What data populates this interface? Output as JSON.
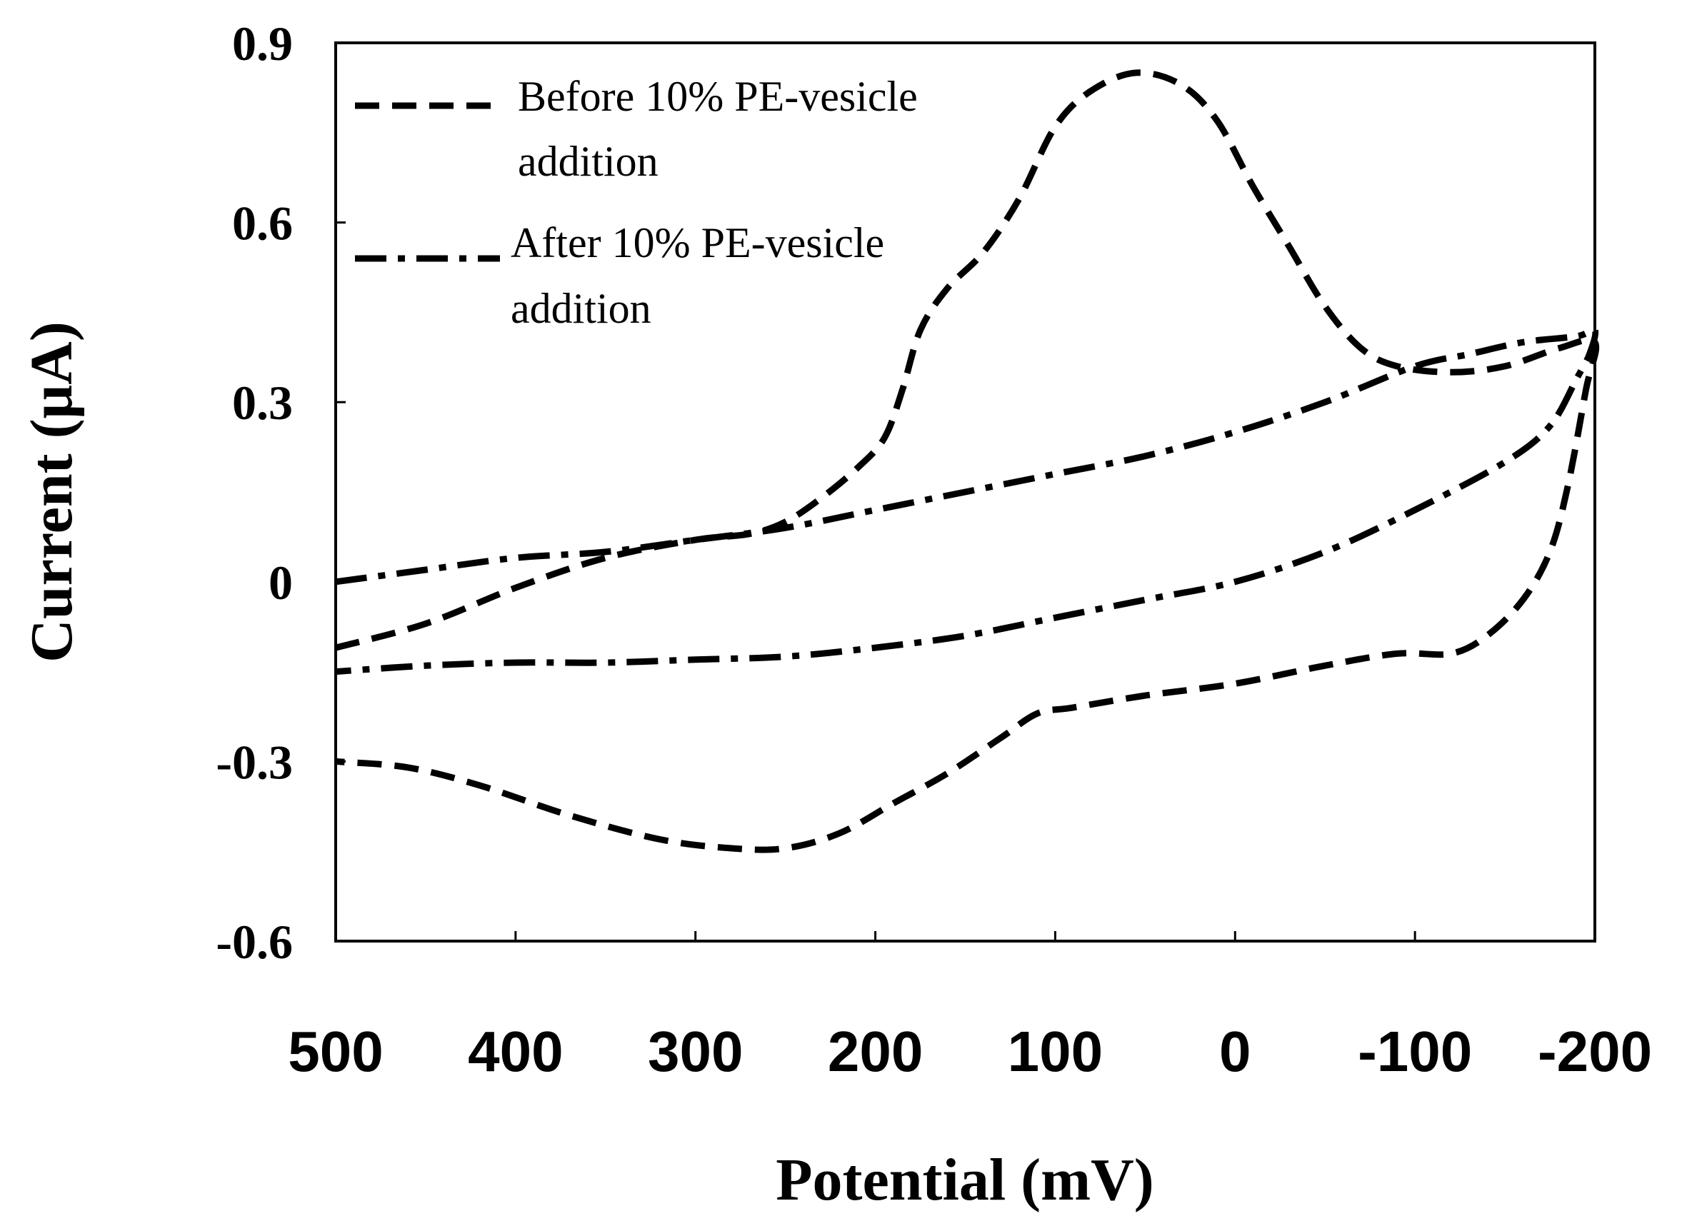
{
  "chart_data": {
    "type": "line",
    "title": "",
    "xlabel": "Potential (mV)",
    "ylabel": "Current (μA)",
    "xlim": [
      500,
      -200
    ],
    "ylim": [
      -0.6,
      0.9
    ],
    "x_ticks": [
      500,
      400,
      300,
      200,
      100,
      0,
      -100,
      -200
    ],
    "x_tick_labels": [
      "500",
      "400",
      "300",
      "200",
      "100",
      "0",
      "-100",
      "-200"
    ],
    "y_ticks": [
      0.9,
      0.6,
      0.3,
      0,
      -0.3,
      -0.6
    ],
    "y_tick_labels": [
      "0.9",
      "0.6",
      "0.3",
      "0",
      "-0.3",
      "-0.6"
    ],
    "grid": false,
    "legend_position": "top-left",
    "series": [
      {
        "name": "Before 10% PE-vesicle addition",
        "legend_lines": [
          "Before 10% PE-vesicle",
          "addition"
        ],
        "style": "dashed",
        "color": "#000000",
        "points": [
          [
            500,
            -0.11
          ],
          [
            450,
            -0.07
          ],
          [
            400,
            -0.01
          ],
          [
            350,
            0.04
          ],
          [
            300,
            0.07
          ],
          [
            270,
            0.08
          ],
          [
            250,
            0.1
          ],
          [
            230,
            0.14
          ],
          [
            210,
            0.19
          ],
          [
            195,
            0.24
          ],
          [
            185,
            0.32
          ],
          [
            175,
            0.42
          ],
          [
            160,
            0.49
          ],
          [
            140,
            0.55
          ],
          [
            120,
            0.64
          ],
          [
            100,
            0.76
          ],
          [
            80,
            0.82
          ],
          [
            55,
            0.85
          ],
          [
            30,
            0.83
          ],
          [
            10,
            0.77
          ],
          [
            -10,
            0.66
          ],
          [
            -30,
            0.56
          ],
          [
            -50,
            0.46
          ],
          [
            -70,
            0.39
          ],
          [
            -90,
            0.36
          ],
          [
            -120,
            0.35
          ],
          [
            -150,
            0.36
          ],
          [
            -180,
            0.39
          ],
          [
            -200,
            0.4
          ],
          [
            -195,
            0.32
          ],
          [
            -185,
            0.16
          ],
          [
            -175,
            0.05
          ],
          [
            -160,
            -0.03
          ],
          [
            -140,
            -0.09
          ],
          [
            -120,
            -0.12
          ],
          [
            -90,
            -0.12
          ],
          [
            -50,
            -0.14
          ],
          [
            0,
            -0.17
          ],
          [
            50,
            -0.19
          ],
          [
            90,
            -0.21
          ],
          [
            110,
            -0.22
          ],
          [
            130,
            -0.26
          ],
          [
            160,
            -0.32
          ],
          [
            190,
            -0.37
          ],
          [
            220,
            -0.42
          ],
          [
            250,
            -0.445
          ],
          [
            280,
            -0.445
          ],
          [
            320,
            -0.43
          ],
          [
            370,
            -0.39
          ],
          [
            420,
            -0.34
          ],
          [
            460,
            -0.31
          ],
          [
            500,
            -0.3
          ]
        ]
      },
      {
        "name": "After 10% PE-vesicle addition",
        "legend_lines": [
          "After 10% PE-vesicle",
          "addition"
        ],
        "style": "dash-dot",
        "color": "#000000",
        "points": [
          [
            500,
            0.0
          ],
          [
            450,
            0.02
          ],
          [
            400,
            0.04
          ],
          [
            350,
            0.05
          ],
          [
            300,
            0.07
          ],
          [
            250,
            0.09
          ],
          [
            200,
            0.12
          ],
          [
            150,
            0.15
          ],
          [
            100,
            0.18
          ],
          [
            50,
            0.21
          ],
          [
            0,
            0.25
          ],
          [
            -50,
            0.3
          ],
          [
            -100,
            0.36
          ],
          [
            -130,
            0.38
          ],
          [
            -160,
            0.4
          ],
          [
            -190,
            0.41
          ],
          [
            -200,
            0.42
          ],
          [
            -197,
            0.38
          ],
          [
            -190,
            0.34
          ],
          [
            -175,
            0.26
          ],
          [
            -150,
            0.2
          ],
          [
            -100,
            0.12
          ],
          [
            -50,
            0.05
          ],
          [
            0,
            0.0
          ],
          [
            50,
            -0.03
          ],
          [
            100,
            -0.06
          ],
          [
            150,
            -0.09
          ],
          [
            200,
            -0.11
          ],
          [
            250,
            -0.125
          ],
          [
            300,
            -0.13
          ],
          [
            350,
            -0.135
          ],
          [
            400,
            -0.135
          ],
          [
            450,
            -0.14
          ],
          [
            500,
            -0.15
          ]
        ]
      }
    ]
  }
}
